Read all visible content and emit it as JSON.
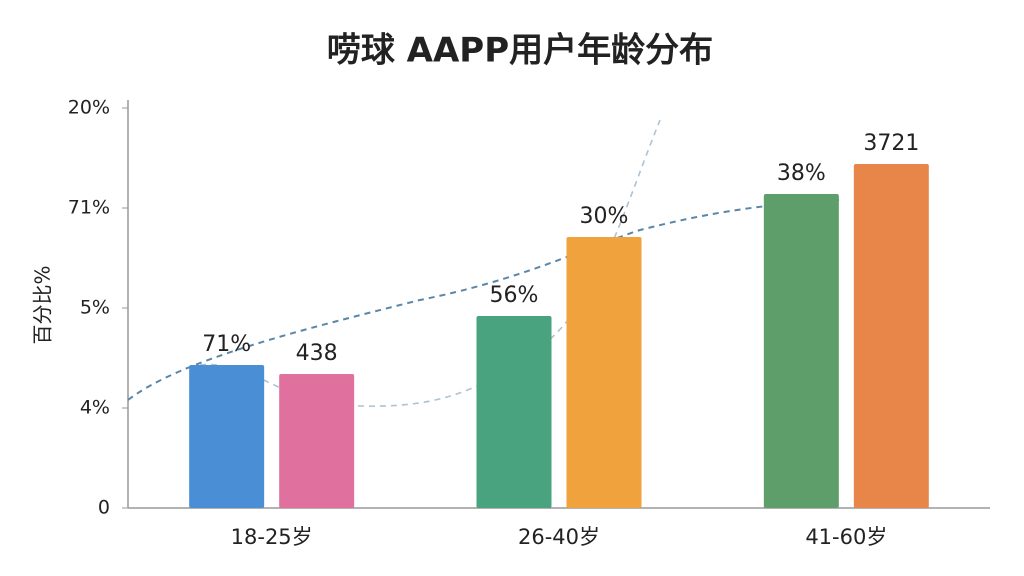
{
  "chart_data": {
    "type": "bar",
    "title": "唠球 AAPP用户年龄分布",
    "ylabel": "百分比%",
    "categories": [
      "18-25岁",
      "26-40岁",
      "41-60岁"
    ],
    "series": [
      {
        "colors": [
          "#4a8fd6",
          "#49a37f",
          "#5e9e6a"
        ],
        "values": [
          1.43,
          1.92,
          3.14
        ]
      },
      {
        "colors": [
          "#e0719e",
          "#f0a23c",
          "#e8864a"
        ],
        "values": [
          1.34,
          2.71,
          3.44
        ]
      }
    ],
    "annotations": [
      [
        "71%",
        "56%",
        "38%"
      ],
      [
        "438",
        "30%",
        "3721"
      ]
    ],
    "ylim": [
      0,
      4
    ],
    "yticks": [
      {
        "value": 0,
        "label": "0"
      },
      {
        "value": 1,
        "label": "4%"
      },
      {
        "value": 2,
        "label": "5%"
      },
      {
        "value": 3,
        "label": "71%"
      },
      {
        "value": 4,
        "label": "20%"
      }
    ],
    "grid": false
  }
}
